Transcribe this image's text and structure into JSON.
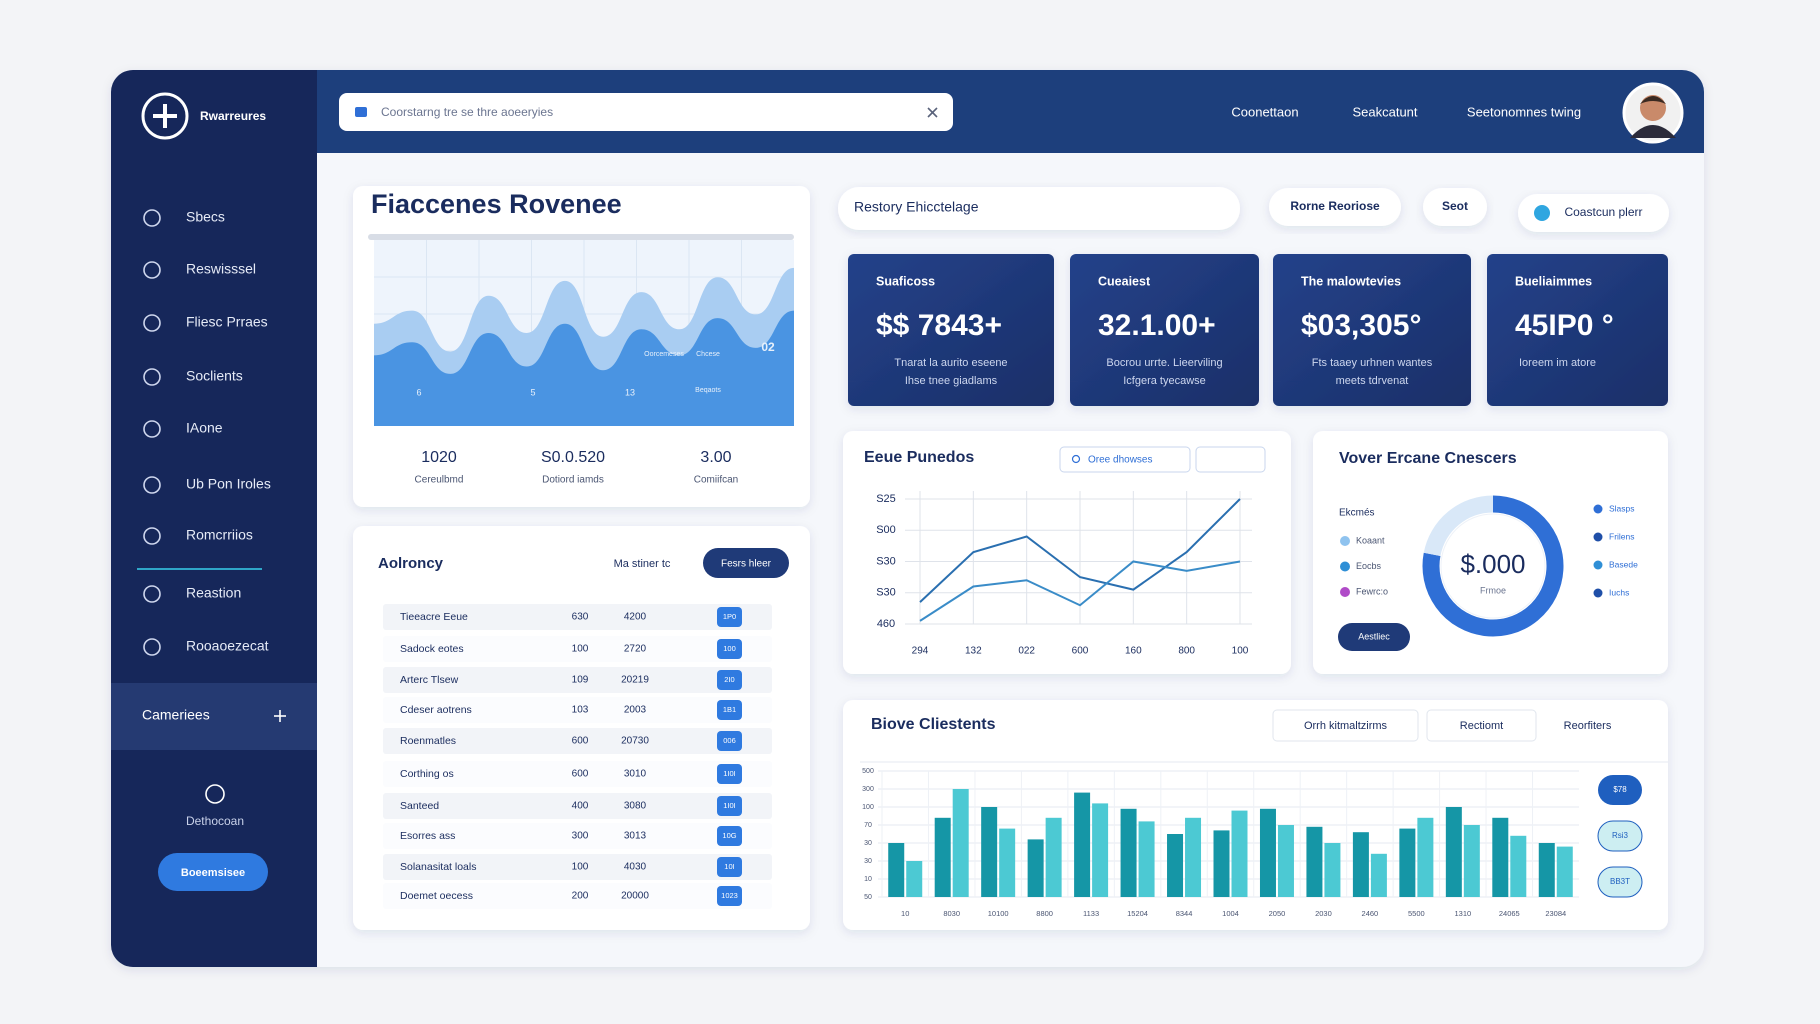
{
  "sidebar": {
    "brand": "Rwarreures",
    "items": [
      "Sbecs",
      "Reswisssel",
      "Fliesc Prraes",
      "Soclients",
      "IAone",
      "Ub Pon Iroles",
      "Romcrriios",
      "Reastion",
      "Rooaoezecat"
    ],
    "section": "Cameriees",
    "footer_label": "Dethocoan",
    "button": "Boeemsisee"
  },
  "topbar": {
    "search": "Coorstarng tre se thre aoeeryies",
    "links": [
      "Coonettaon",
      "Seakcatunt",
      "Seetonomnes twing"
    ]
  },
  "toolbar": {
    "input": "Restory Ehicctelage",
    "buttons": [
      "Rorne Reoriose",
      "Seot",
      "Coastcun plerr"
    ]
  },
  "revenue": {
    "title": "Fiaccenes Rovenee",
    "stats": [
      {
        "value": "1020",
        "label": "Cereulbmd"
      },
      {
        "value": "S0.0.520",
        "label": "Dotiord iamds"
      },
      {
        "value": "3.00",
        "label": "Comiifcan"
      }
    ]
  },
  "kpis": [
    {
      "label": "Suaficoss",
      "value": "$$ 7843+",
      "lines": [
        "Tnarat la aurito eseene",
        "Ihse tnee giadlams"
      ]
    },
    {
      "label": "Cueaiest",
      "value": "32.1.00+",
      "lines": [
        "Bocrou urrte. Lieerviling",
        "Icfgera tyecawse"
      ]
    },
    {
      "label": "The malowtevies",
      "value": "$03,305°",
      "lines": [
        "Fts taaey urhnen wantes",
        "meets tdrvenat"
      ]
    },
    {
      "label": "Bueliaimmes",
      "value": "45IP0 °",
      "lines": [
        "Ioreem im atore"
      ]
    }
  ],
  "table": {
    "title": "Aolroncy",
    "filter": "Ma stiner tc",
    "button": "Fesrs hleer",
    "rows": [
      [
        "Tieeacre Eeue",
        "630",
        "4200",
        "1P0"
      ],
      [
        "Sadock eotes",
        "100",
        "2720",
        "100"
      ],
      [
        "Arterc Tlsew",
        "109",
        "20219",
        "2I0"
      ],
      [
        "Cdeser aotrens",
        "103",
        "2003",
        "1B1"
      ],
      [
        "Roenmatles",
        "600",
        "20730",
        "006"
      ],
      [
        "Corthing os",
        "600",
        "3010",
        "1I0I"
      ],
      [
        "Santeed",
        "400",
        "3080",
        "1I0I"
      ],
      [
        "Esorres ass",
        "300",
        "3013",
        "10G"
      ],
      [
        "Solanasitat loals",
        "100",
        "4030",
        "10I"
      ],
      [
        "Doemet oecess",
        "200",
        "20000",
        "1023"
      ]
    ]
  },
  "line_card": {
    "dropdown": "Oree dhowses"
  },
  "donut_card": {
    "legend_title": "Ekcmés",
    "legend_left": [
      "Koaant",
      "Eocbs",
      "Fewrc:o"
    ],
    "legend_right": [
      "Slasps",
      "Frilens",
      "Basede",
      "Iuchs"
    ],
    "button": "Aestliec"
  },
  "bar_card": {
    "tabs": [
      "Orrh kitmaltzirms",
      "Rectiomt",
      "Reorfiters"
    ],
    "pills": [
      "$78",
      "Rsi3",
      "BB3T"
    ]
  },
  "chart_data": [
    {
      "type": "area",
      "ylim": [
        0,
        100
      ],
      "series": [
        {
          "color": "#a9cdf2",
          "values": [
            55,
            62,
            40,
            70,
            50,
            78,
            48,
            72,
            52,
            80,
            60,
            85
          ]
        },
        {
          "color": "#3f8ee0",
          "values": [
            38,
            45,
            28,
            50,
            32,
            55,
            30,
            52,
            38,
            58,
            42,
            62
          ]
        }
      ],
      "annotations": [
        "6",
        "5",
        "13",
        "Oorcemeses",
        "Chcese",
        "Beqaots",
        "02"
      ]
    },
    {
      "type": "line",
      "title": "Eeue Punedos",
      "categories": [
        "294",
        "132",
        "022",
        "600",
        "160",
        "800",
        "100"
      ],
      "ylim": [
        0,
        4
      ],
      "yticks": [
        {
          "value": 4,
          "label": "S25"
        },
        {
          "value": 3,
          "label": "S00"
        },
        {
          "value": 2,
          "label": "S30"
        },
        {
          "value": 1,
          "label": "S30"
        },
        {
          "value": 0,
          "label": "460"
        }
      ],
      "grid": true,
      "series": [
        {
          "color": "#2a6fb0",
          "values": [
            0.7,
            2.3,
            2.8,
            1.5,
            1.1,
            2.3,
            4.0
          ]
        },
        {
          "color": "#3a8cc8",
          "values": [
            0.1,
            1.2,
            1.4,
            0.6,
            2.0,
            1.7,
            2.0
          ]
        }
      ]
    },
    {
      "type": "donut",
      "title": "Vover Ercane Cnescers",
      "center_text": "$.000",
      "center_label": "Frmoe",
      "values": [
        78,
        22
      ],
      "colors": [
        "#2f6fd6",
        "#d9e8f8"
      ]
    },
    {
      "type": "bar",
      "title": "Biove Cliestents",
      "categories": [
        "10",
        "8030",
        "10100",
        "8800",
        "1133",
        "15204",
        "8344",
        "1004",
        "2050",
        "2030",
        "2460",
        "5500",
        "1310",
        "24065",
        "23084"
      ],
      "ylim": [
        0,
        7
      ],
      "yticks": [
        {
          "value": 7,
          "label": "500"
        },
        {
          "value": 6,
          "label": "300"
        },
        {
          "value": 5,
          "label": "100"
        },
        {
          "value": 4,
          "label": "70"
        },
        {
          "value": 3,
          "label": "30"
        },
        {
          "value": 2,
          "label": "30"
        },
        {
          "value": 1,
          "label": "10"
        },
        {
          "value": 0,
          "label": "50"
        }
      ],
      "grid": true,
      "series": [
        {
          "color": "#1596a6",
          "values": [
            3.0,
            4.4,
            5.0,
            3.2,
            5.8,
            4.9,
            3.5,
            3.7,
            4.9,
            3.9,
            3.6,
            3.8,
            5.0,
            4.4,
            3.0
          ]
        },
        {
          "color": "#4cc9d3",
          "values": [
            2.0,
            6.0,
            3.8,
            4.4,
            5.2,
            4.2,
            4.4,
            4.8,
            4.0,
            3.0,
            2.4,
            4.4,
            4.0,
            3.4,
            2.8
          ]
        }
      ]
    }
  ]
}
